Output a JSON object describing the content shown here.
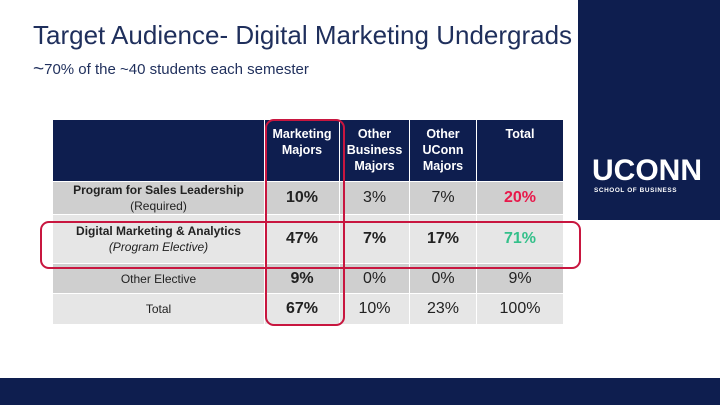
{
  "slide": {
    "title": "Target Audience- Digital Marketing Undergrads",
    "subtitle_tilde": "~",
    "subtitle_rest": "70% of the ~40 students each semester"
  },
  "brand": {
    "name": "UCONN",
    "subname": "SCHOOL OF BUSINESS"
  },
  "table": {
    "headers": [
      "",
      "Marketing\nMajors",
      "Other\nBusiness\nMajors",
      "Other\nUConn\nMajors",
      "Total"
    ],
    "rows": [
      {
        "label_main": "Program for Sales Leadership",
        "label_sub": "(Required)",
        "values": [
          "10%",
          "3%",
          "7%",
          "20%"
        ]
      },
      {
        "label_main": "Digital Marketing & Analytics",
        "label_sub": "(Program Elective)",
        "values": [
          "47%",
          "7%",
          "17%",
          "71%"
        ]
      },
      {
        "label_main": "Other Elective",
        "label_sub": "",
        "values": [
          "9%",
          "0%",
          "0%",
          "9%"
        ]
      },
      {
        "label_main": "Total",
        "label_sub": "",
        "values": [
          "67%",
          "10%",
          "23%",
          "100%"
        ]
      }
    ]
  },
  "colors": {
    "navy": "#0e1e4f",
    "highlight": "#c8163f",
    "red_value": "#e8194b",
    "green_value": "#33c08a"
  }
}
